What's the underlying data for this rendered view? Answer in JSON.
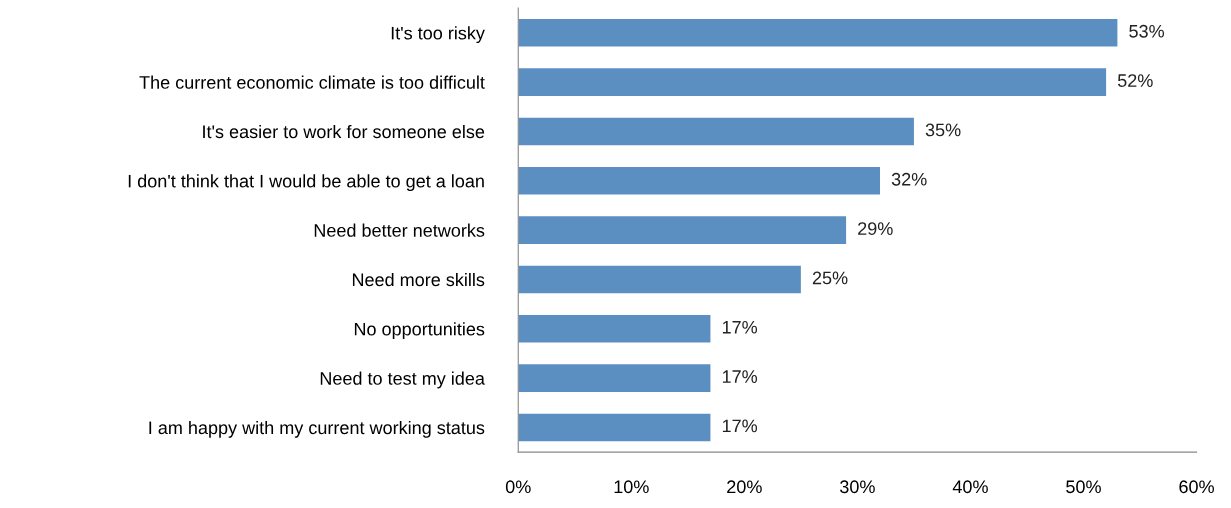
{
  "chart_data": {
    "type": "bar",
    "orientation": "horizontal",
    "categories": [
      "It's too risky",
      "The current economic climate is too difficult",
      "It's easier to work for someone else",
      "I don't think that I would be able to get a loan",
      "Need better networks",
      "Need more skills",
      "No opportunities",
      "Need to test my idea",
      "I am happy with my current working status"
    ],
    "values": [
      53,
      52,
      35,
      32,
      29,
      25,
      17,
      17,
      17
    ],
    "value_labels": [
      "53%",
      "52%",
      "35%",
      "32%",
      "29%",
      "25%",
      "17%",
      "17%",
      "17%"
    ],
    "color": "#5b8fc2",
    "xlim": [
      0,
      60
    ],
    "xticks": [
      {
        "value": 0,
        "label": "0%"
      },
      {
        "value": 10,
        "label": "10%"
      },
      {
        "value": 20,
        "label": "20%"
      },
      {
        "value": 30,
        "label": "30%"
      },
      {
        "value": 40,
        "label": "40%"
      },
      {
        "value": 50,
        "label": "50%"
      },
      {
        "value": 60,
        "label": "60%"
      }
    ],
    "grid": false,
    "legend": false
  }
}
